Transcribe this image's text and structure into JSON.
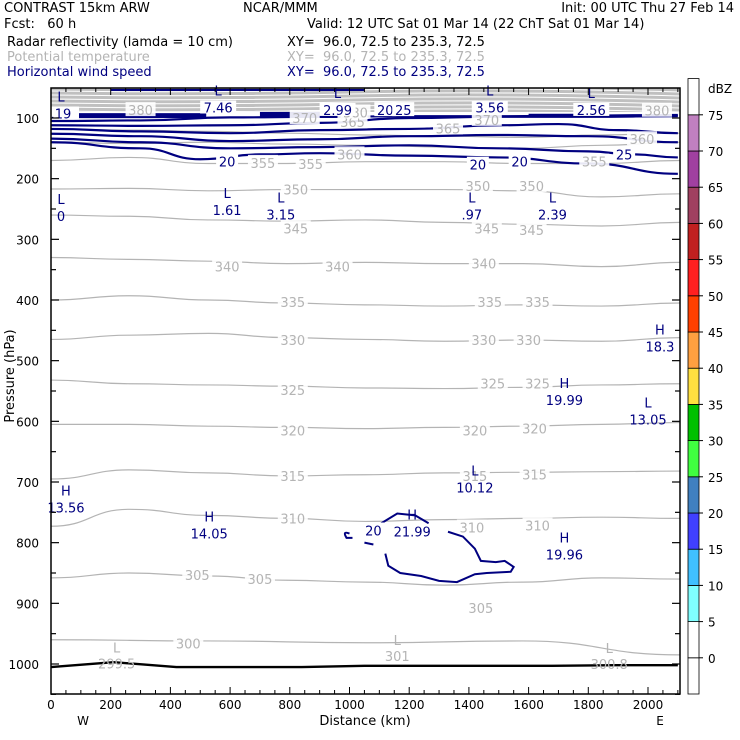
{
  "header": {
    "model": "CONTRAST 15km ARW",
    "center": "NCAR/MMM",
    "init": "Init: 00 UTC Thu 27 Feb 14",
    "fcst": "Fcst:   60 h",
    "valid": "Valid: 12 UTC Sat 01 Mar 14 (22 ChT Sat 01 Mar 14)",
    "fields": [
      {
        "name": "Radar reflectivity (lamda = 10 cm)",
        "xy": "XY=  96.0, 72.5 to 235.3, 72.5",
        "color": "#000000"
      },
      {
        "name": "Potential temperature",
        "xy": "XY=  96.0, 72.5 to 235.3, 72.5",
        "color": "#b4b4b4"
      },
      {
        "name": "Horizontal wind speed",
        "xy": "XY=  96.0, 72.5 to 235.3, 72.5",
        "color": "#000080"
      }
    ]
  },
  "chart_data": {
    "type": "contour-cross-section",
    "xlabel": "Distance (km)",
    "ylabel": "Pressure (hPa)",
    "xlim": [
      0,
      2100
    ],
    "ylim": [
      1050,
      50
    ],
    "x_ticks": [
      0,
      200,
      400,
      600,
      800,
      1000,
      1200,
      1400,
      1600,
      1800,
      2000
    ],
    "y_ticks": [
      100,
      200,
      300,
      400,
      500,
      600,
      700,
      800,
      900,
      1000
    ],
    "x_end_labels": {
      "left": "W",
      "right": "E"
    },
    "colorbar": {
      "unit": "dBZ",
      "levels": [
        0,
        5,
        10,
        15,
        20,
        25,
        30,
        35,
        40,
        45,
        50,
        55,
        60,
        65,
        70,
        75
      ],
      "colors": [
        "#ffffff",
        "#ffffff",
        "#80ffff",
        "#40c0ff",
        "#4040ff",
        "#4080c0",
        "#40ff40",
        "#00c000",
        "#ffe040",
        "#ffa040",
        "#ff4000",
        "#ff2020",
        "#c02020",
        "#a04060",
        "#a040a0",
        "#c080c0",
        "#ffffff"
      ]
    },
    "theta_contours": [
      {
        "value": 300,
        "p": [
          960,
          962,
          965,
          962,
          985
        ]
      },
      {
        "value": 305,
        "p": [
          858,
          850,
          855,
          862,
          865,
          870,
          865,
          858,
          860
        ]
      },
      {
        "value": 310,
        "p": [
          773,
          745,
          755,
          760,
          765,
          762,
          760,
          758,
          760
        ]
      },
      {
        "value": 315,
        "p": [
          695,
          680,
          685,
          690,
          688,
          685,
          684,
          683,
          682
        ]
      },
      {
        "value": 320,
        "p": [
          605,
          605,
          608,
          610,
          612,
          610,
          608,
          605,
          602
        ]
      },
      {
        "value": 325,
        "p": [
          532,
          538,
          540,
          542,
          545,
          546,
          544,
          540,
          538
        ]
      },
      {
        "value": 330,
        "p": [
          465,
          458,
          455,
          462,
          465,
          468,
          466,
          468,
          462
        ]
      },
      {
        "value": 335,
        "p": [
          400,
          393,
          400,
          405,
          408,
          410,
          408,
          410,
          405
        ]
      },
      {
        "value": 340,
        "p": [
          330,
          333,
          336,
          340,
          338,
          340,
          340,
          345,
          338
        ]
      },
      {
        "value": 345,
        "p": [
          260,
          262,
          268,
          270,
          268,
          272,
          275,
          278,
          272
        ]
      },
      {
        "value": 350,
        "p": [
          217,
          216,
          220,
          218,
          218,
          218,
          220,
          230,
          225
        ]
      },
      {
        "value": 355,
        "p": [
          170,
          165,
          175,
          175,
          172,
          172,
          175,
          175,
          170
        ]
      },
      {
        "value": 360,
        "p": [
          140,
          142,
          140,
          143,
          145,
          148,
          150,
          145,
          140
        ]
      },
      {
        "value": 365,
        "p": [
          118,
          120,
          122,
          125,
          128,
          130,
          132,
          128,
          125
        ]
      }
    ],
    "theta_labels": [
      {
        "text": "350",
        "x": 820,
        "p": 218
      },
      {
        "text": "350",
        "x": 1430,
        "p": 212
      },
      {
        "text": "350",
        "x": 1610,
        "p": 212
      },
      {
        "text": "345",
        "x": 820,
        "p": 282
      },
      {
        "text": "345",
        "x": 1460,
        "p": 282
      },
      {
        "text": "345",
        "x": 1610,
        "p": 285
      },
      {
        "text": "340",
        "x": 590,
        "p": 345
      },
      {
        "text": "340",
        "x": 960,
        "p": 345
      },
      {
        "text": "340",
        "x": 1450,
        "p": 340
      },
      {
        "text": "335",
        "x": 810,
        "p": 403
      },
      {
        "text": "335",
        "x": 1470,
        "p": 403
      },
      {
        "text": "335",
        "x": 1630,
        "p": 403
      },
      {
        "text": "330",
        "x": 810,
        "p": 466
      },
      {
        "text": "330",
        "x": 1450,
        "p": 466
      },
      {
        "text": "330",
        "x": 1600,
        "p": 466
      },
      {
        "text": "325",
        "x": 810,
        "p": 548
      },
      {
        "text": "325",
        "x": 1480,
        "p": 538
      },
      {
        "text": "325",
        "x": 1630,
        "p": 538
      },
      {
        "text": "320",
        "x": 810,
        "p": 615
      },
      {
        "text": "320",
        "x": 1420,
        "p": 615
      },
      {
        "text": "320",
        "x": 1620,
        "p": 612
      },
      {
        "text": "315",
        "x": 810,
        "p": 690
      },
      {
        "text": "315",
        "x": 1420,
        "p": 690
      },
      {
        "text": "315",
        "x": 1620,
        "p": 688
      },
      {
        "text": "310",
        "x": 810,
        "p": 760
      },
      {
        "text": "310",
        "x": 1410,
        "p": 775
      },
      {
        "text": "310",
        "x": 1630,
        "p": 772
      },
      {
        "text": "305",
        "x": 490,
        "p": 853
      },
      {
        "text": "305",
        "x": 700,
        "p": 860
      },
      {
        "text": "305",
        "x": 1440,
        "p": 908
      },
      {
        "text": "300",
        "x": 460,
        "p": 966
      },
      {
        "text": "355",
        "x": 710,
        "p": 174
      },
      {
        "text": "355",
        "x": 870,
        "p": 176
      },
      {
        "text": "355",
        "x": 1820,
        "p": 172
      },
      {
        "text": "360",
        "x": 1000,
        "p": 160
      },
      {
        "text": "360",
        "x": 1980,
        "p": 135
      },
      {
        "text": "365",
        "x": 1330,
        "p": 117
      },
      {
        "text": "365",
        "x": 1010,
        "p": 107
      },
      {
        "text": "370",
        "x": 1460,
        "p": 103
      },
      {
        "text": "370",
        "x": 850,
        "p": 100
      },
      {
        "text": "380",
        "x": 300,
        "p": 87
      },
      {
        "text": "380",
        "x": 1020,
        "p": 91
      },
      {
        "text": "380",
        "x": 2030,
        "p": 88
      }
    ],
    "theta_extrema": [
      {
        "type": "L",
        "value": "299.5",
        "x": 220,
        "p": 1004
      },
      {
        "type": "L",
        "value": "301",
        "x": 1160,
        "p": 992
      },
      {
        "type": "L",
        "value": "300.8",
        "x": 1870,
        "p": 1005
      }
    ],
    "wind_contours": [
      {
        "value": 20,
        "label_pos": [
          {
            "x": 590,
            "p": 172
          },
          {
            "x": 1430,
            "p": 177
          },
          {
            "x": 1570,
            "p": 172
          },
          {
            "x": 1120,
            "p": 87
          }
        ]
      },
      {
        "value": 25,
        "label_pos": [
          {
            "x": 1180,
            "p": 87
          },
          {
            "x": 1920,
            "p": 160
          }
        ]
      },
      {
        "value": 20,
        "label_pos": [
          {
            "x": 1080,
            "p": 780
          }
        ]
      }
    ],
    "wind_extrema": [
      {
        "type": "L",
        "value": "7.46",
        "x": 560,
        "p": 86
      },
      {
        "type": "L",
        "value": "2.99",
        "x": 960,
        "p": 90
      },
      {
        "type": "L",
        "value": "3.56",
        "x": 1470,
        "p": 86
      },
      {
        "type": "L",
        "value": "2.56",
        "x": 1810,
        "p": 90
      },
      {
        "type": "L",
        "value": ".19",
        "x": 20,
        "p": 96
      },
      {
        "type": "L",
        "value": "1.61",
        "x": 590,
        "p": 255
      },
      {
        "type": "L",
        "value": "3.15",
        "x": 770,
        "p": 262
      },
      {
        "type": "L",
        "value": ".97",
        "x": 1410,
        "p": 262
      },
      {
        "type": "L",
        "value": "2.39",
        "x": 1680,
        "p": 262
      },
      {
        "type": "L",
        "value": "0",
        "x": 10,
        "p": 265
      },
      {
        "type": "H",
        "value": "18.3",
        "x": 2040,
        "p": 480
      },
      {
        "type": "H",
        "value": "19.99",
        "x": 1720,
        "p": 568
      },
      {
        "type": "L",
        "value": "13.05",
        "x": 2000,
        "p": 600
      },
      {
        "type": "L",
        "value": "10.12",
        "x": 1420,
        "p": 712
      },
      {
        "type": "H",
        "value": "13.56",
        "x": 50,
        "p": 745
      },
      {
        "type": "H",
        "value": "14.05",
        "x": 530,
        "p": 788
      },
      {
        "type": "H",
        "value": "21.99",
        "x": 1210,
        "p": 785
      },
      {
        "type": "H",
        "value": "19.96",
        "x": 1720,
        "p": 823
      }
    ],
    "terrain_p": [
      1005,
      997,
      1005,
      1005,
      1005,
      1003,
      1003,
      1003,
      1003,
      1002,
      1002
    ]
  }
}
